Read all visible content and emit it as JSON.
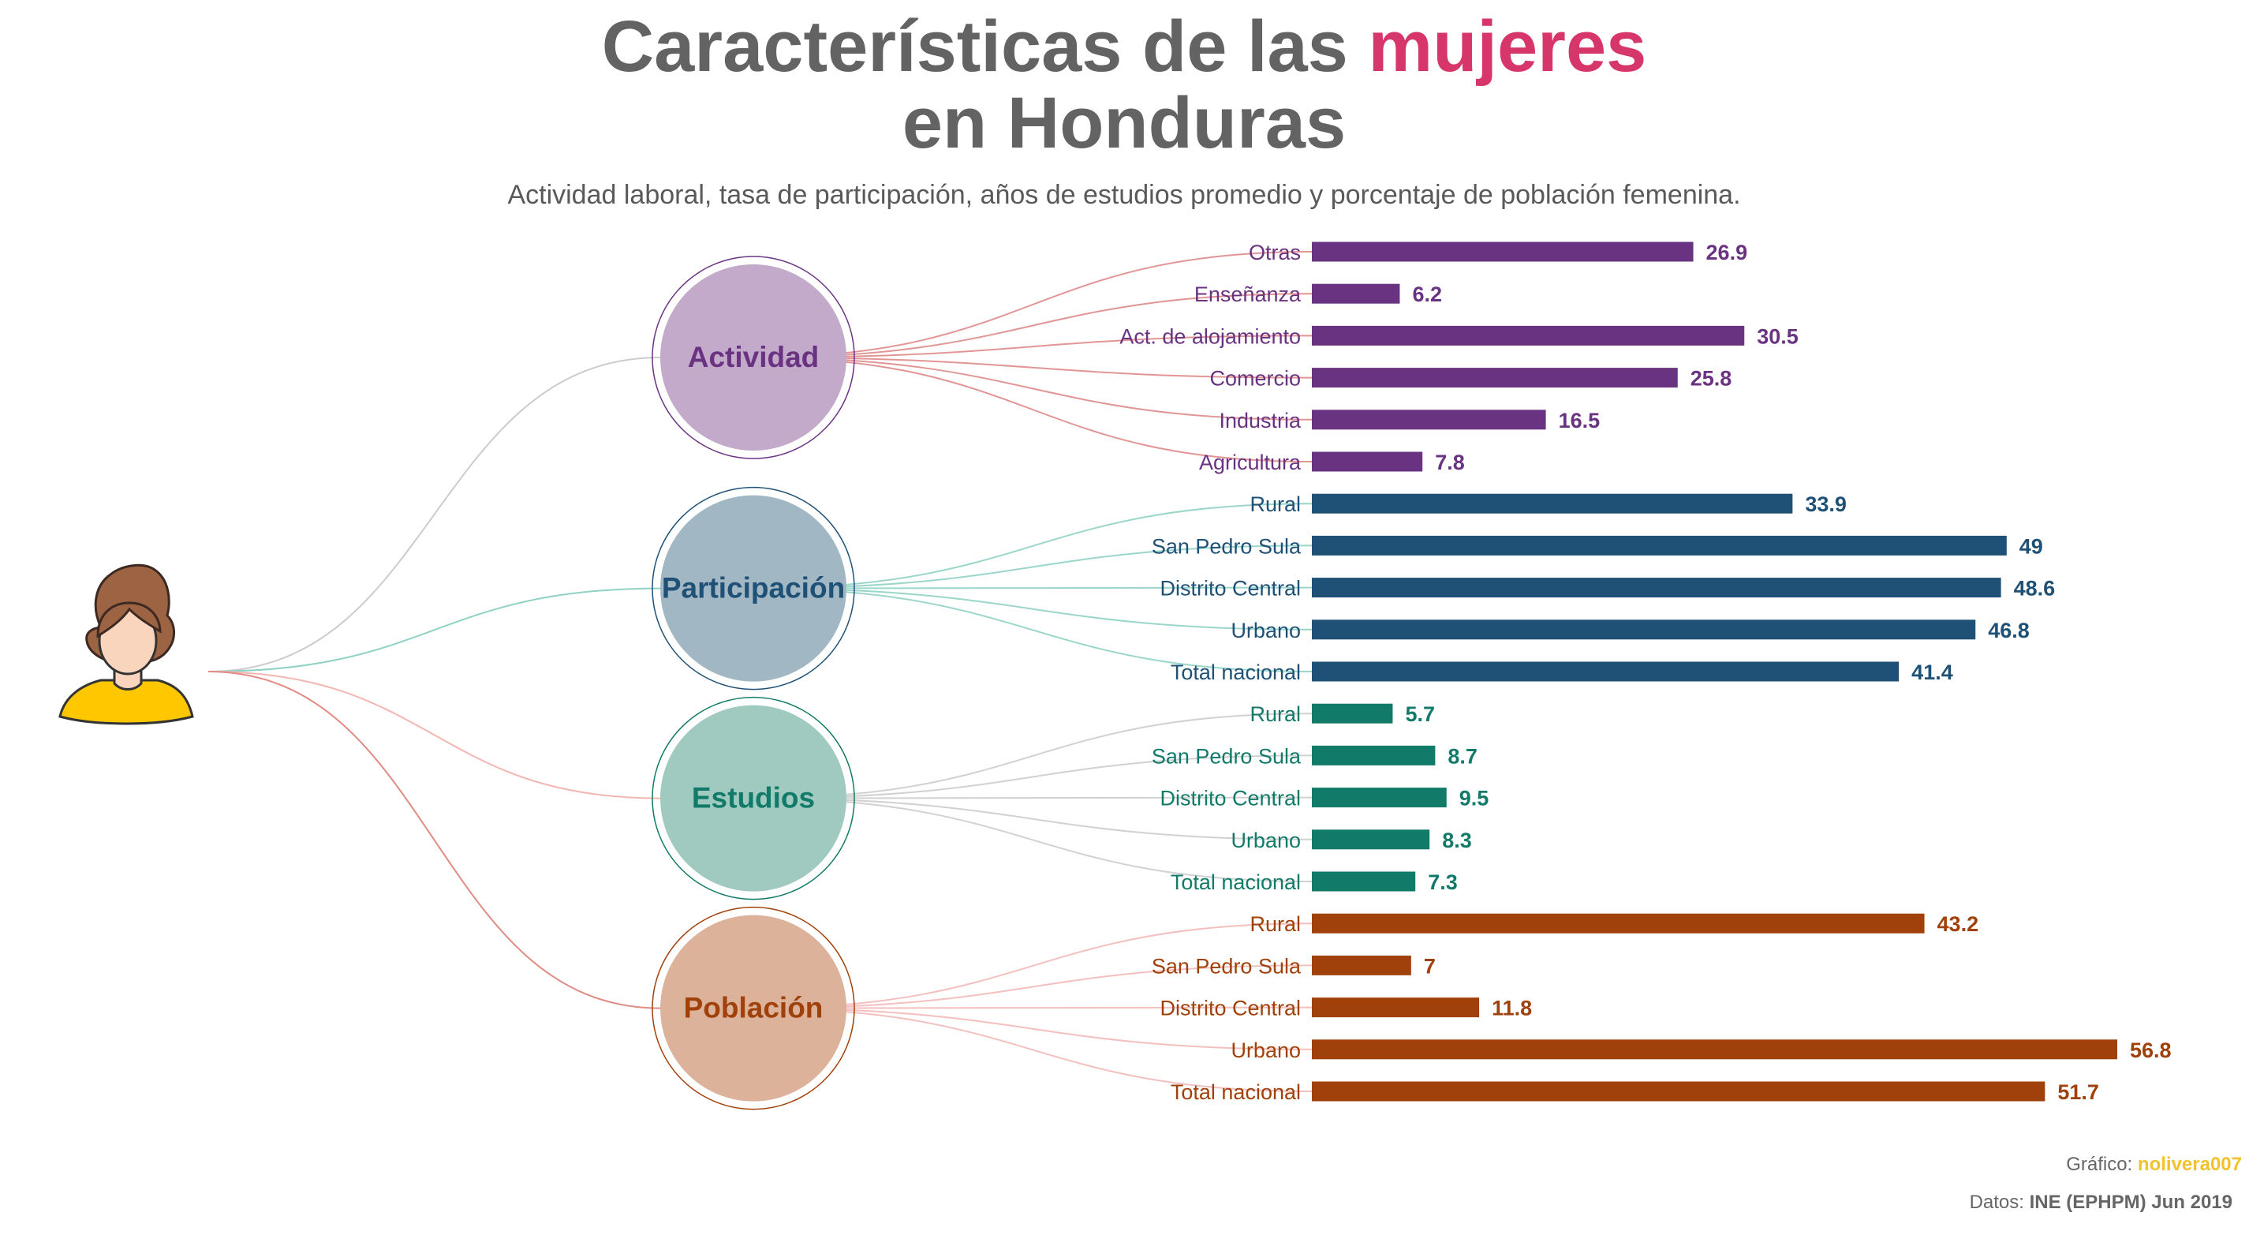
{
  "header": {
    "title_part1": "Características de las ",
    "title_accent": "mujeres",
    "title_line2": "en Honduras",
    "subtitle": "Actividad laboral, tasa de participación, años de estudios promedio y porcentaje de población femenina."
  },
  "credits": {
    "graphic_label": "Gráfico: ",
    "graphic_author": "nolivera007",
    "data_label": "Datos: ",
    "data_source": "INE (EPHPM) Jun 2019"
  },
  "colors": {
    "title": "#636363",
    "accent": "#D63669",
    "author": "#F2C12E",
    "avatar_shirt": "#FFC700",
    "avatar_hair": "#9C6442",
    "avatar_skin": "#F9D5BD"
  },
  "chart_data": {
    "type": "bar",
    "orientation": "horizontal",
    "groups": [
      {
        "name": "Actividad",
        "color": "#6A3382",
        "circle_fill": "#C3A9CA",
        "link_color": "#DE8A8A",
        "categories": [
          "Otras",
          "Enseñanza",
          "Act. de alojamiento",
          "Comercio",
          "Industria",
          "Agricultura"
        ],
        "values": [
          26.9,
          6.2,
          30.5,
          25.8,
          16.5,
          7.8
        ],
        "value_labels": [
          "26.9",
          "6.2",
          "30.5",
          "25.8",
          "16.5",
          "7.8"
        ]
      },
      {
        "name": "Participación",
        "color": "#1F5176",
        "circle_fill": "#A2B7C4",
        "link_color": "#8FD1C4",
        "categories": [
          "Rural",
          "San Pedro Sula",
          "Distrito Central",
          "Urbano",
          "Total nacional"
        ],
        "values": [
          33.9,
          49,
          48.6,
          46.8,
          41.4
        ],
        "value_labels": [
          "33.9",
          "49",
          "48.6",
          "46.8",
          "41.4"
        ]
      },
      {
        "name": "Estudios",
        "color": "#127A68",
        "circle_fill": "#A0CAC0",
        "link_color": "#CCCCCC",
        "categories": [
          "Rural",
          "San Pedro Sula",
          "Distrito Central",
          "Urbano",
          "Total nacional"
        ],
        "values": [
          5.7,
          8.7,
          9.5,
          8.3,
          7.3
        ],
        "value_labels": [
          "5.7",
          "8.7",
          "9.5",
          "8.3",
          "7.3"
        ]
      },
      {
        "name": "Población",
        "color": "#A0410B",
        "circle_fill": "#DDB29A",
        "link_color": "#F2B8B8",
        "categories": [
          "Rural",
          "San Pedro Sula",
          "Distrito Central",
          "Urbano",
          "Total nacional"
        ],
        "values": [
          43.2,
          7,
          11.8,
          56.8,
          51.7
        ],
        "value_labels": [
          "43.2",
          "7",
          "11.8",
          "56.8",
          "51.7"
        ]
      }
    ],
    "root_link_colors": [
      "#CCCCCC",
      "#8FD1C4",
      "#F4B6B0",
      "#E08C84"
    ],
    "xlim": [
      0,
      56.8
    ],
    "grid": false,
    "legend": "none"
  }
}
